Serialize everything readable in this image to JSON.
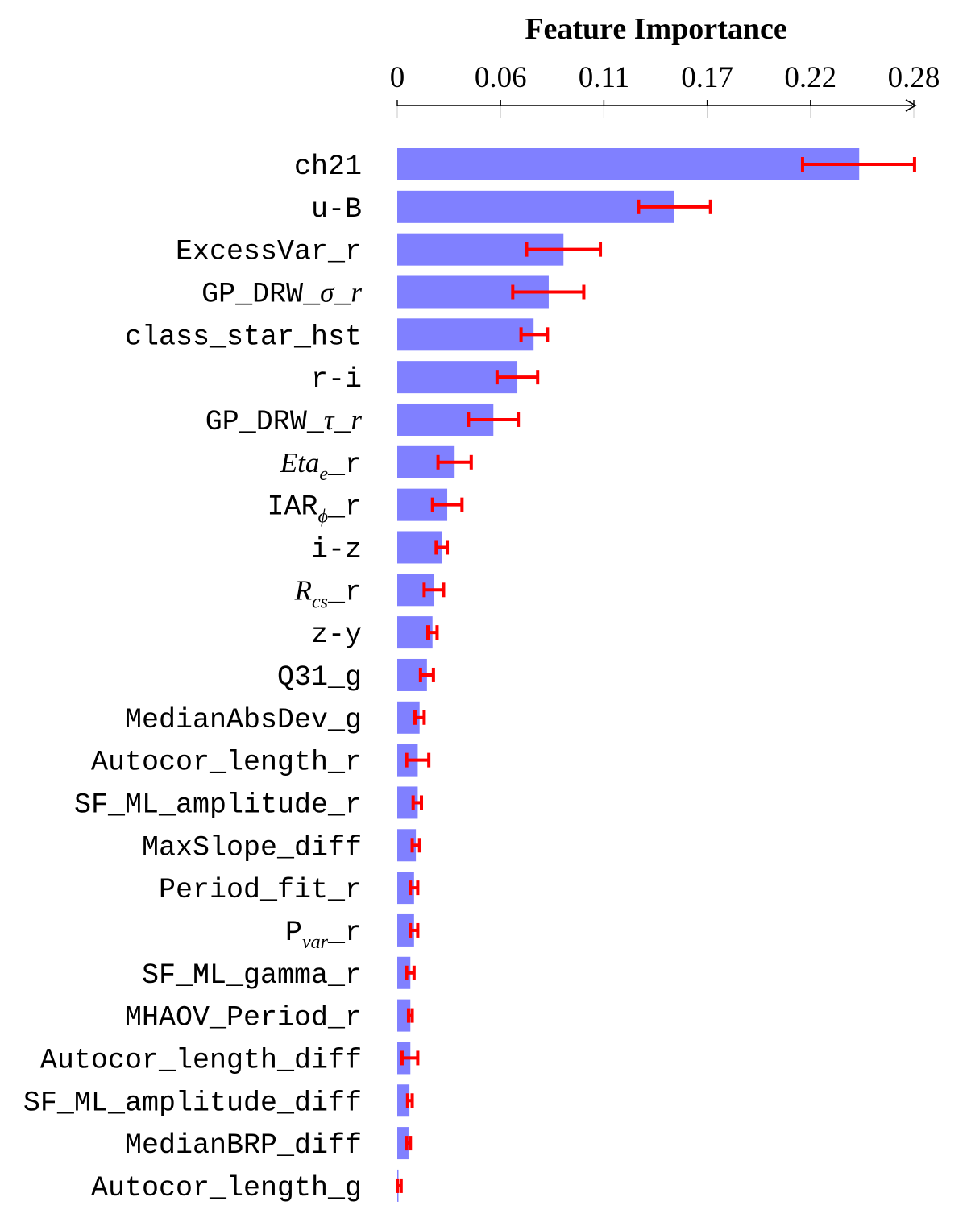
{
  "chart_data": {
    "type": "bar",
    "orientation": "horizontal",
    "title": "Feature Importance",
    "xlabel": "",
    "ylabel": "",
    "xlim": [
      0,
      0.28
    ],
    "x_ticks": [
      "0",
      "0.06",
      "0.11",
      "0.17",
      "0.22",
      "0.28"
    ],
    "x_tick_values": [
      0,
      0.056,
      0.112,
      0.168,
      0.224,
      0.28
    ],
    "axis_position": "top",
    "grid": true,
    "legend": "none",
    "colors": {
      "bar": "#8080ff",
      "error_bar": "#ff0000",
      "axis": "#000000",
      "grid": "#d0d0d0"
    },
    "categories": [
      "ch21",
      "u-B",
      "ExcessVar_r",
      "GP_DRW_σ_r",
      "class_star_hst",
      "r-i",
      "GP_DRW_τ_r",
      "Eta_e_r",
      "IAR_ϕ_r",
      "i-z",
      "R_cs_r",
      "z-y",
      "Q31_g",
      "MedianAbsDev_g",
      "Autocor_length_r",
      "SF_ML_amplitude_r",
      "MaxSlope_diff",
      "Period_fit_r",
      "P_var_r",
      "SF_ML_gamma_r",
      "MHAOV_Period_r",
      "Autocor_length_diff",
      "SF_ML_amplitude_diff",
      "MedianBRP_diff",
      "Autocor_length_g"
    ],
    "labels": [
      [
        {
          "t": "ch21"
        }
      ],
      [
        {
          "t": "u-B"
        }
      ],
      [
        {
          "t": "ExcessVar_r"
        }
      ],
      [
        {
          "t": "GP_DRW_"
        },
        {
          "t": "σ",
          "s": "it"
        },
        {
          "t": "_"
        },
        {
          "t": "r",
          "s": "it"
        }
      ],
      [
        {
          "t": "class_star_hst"
        }
      ],
      [
        {
          "t": "r-i"
        }
      ],
      [
        {
          "t": "GP_DRW_"
        },
        {
          "t": "τ",
          "s": "it"
        },
        {
          "t": "_"
        },
        {
          "t": "r",
          "s": "it"
        }
      ],
      [
        {
          "t": "Eta",
          "s": "it"
        },
        {
          "t": "e",
          "s": "sub"
        },
        {
          "t": "_r"
        }
      ],
      [
        {
          "t": "IAR"
        },
        {
          "t": "ϕ",
          "s": "sub"
        },
        {
          "t": "_r"
        }
      ],
      [
        {
          "t": "i-z"
        }
      ],
      [
        {
          "t": "R",
          "s": "it"
        },
        {
          "t": "cs",
          "s": "sub"
        },
        {
          "t": "_r"
        }
      ],
      [
        {
          "t": "z-y"
        }
      ],
      [
        {
          "t": "Q31_g"
        }
      ],
      [
        {
          "t": "MedianAbsDev_g"
        }
      ],
      [
        {
          "t": "Autocor_length_r"
        }
      ],
      [
        {
          "t": "SF_ML_amplitude_r"
        }
      ],
      [
        {
          "t": "MaxSlope_diff"
        }
      ],
      [
        {
          "t": "Period_fit_r"
        }
      ],
      [
        {
          "t": "P"
        },
        {
          "t": "var",
          "s": "sub"
        },
        {
          "t": "_r"
        }
      ],
      [
        {
          "t": "SF_ML_gamma_r"
        }
      ],
      [
        {
          "t": "MHAOV_Period_r"
        }
      ],
      [
        {
          "t": "Autocor_length_diff"
        }
      ],
      [
        {
          "t": "SF_ML_amplitude_diff"
        }
      ],
      [
        {
          "t": "MedianBRP_diff"
        }
      ],
      [
        {
          "t": "Autocor_length_g"
        }
      ]
    ],
    "values": [
      0.2504,
      0.1499,
      0.0901,
      0.0821,
      0.0739,
      0.0651,
      0.0521,
      0.0311,
      0.0271,
      0.0241,
      0.0201,
      0.0191,
      0.0161,
      0.0121,
      0.0111,
      0.0111,
      0.0101,
      0.0091,
      0.0091,
      0.0071,
      0.0071,
      0.0071,
      0.0066,
      0.0061,
      0.0006
    ],
    "error_low": [
      0.2197,
      0.1308,
      0.0701,
      0.0626,
      0.0671,
      0.0541,
      0.0386,
      0.0221,
      0.0191,
      0.0211,
      0.0146,
      0.0166,
      0.0126,
      0.0096,
      0.0051,
      0.0086,
      0.0081,
      0.0071,
      0.0071,
      0.0051,
      0.0061,
      0.0026,
      0.0056,
      0.0051,
      0.0001
    ],
    "error_high": [
      0.2804,
      0.1698,
      0.1101,
      0.1011,
      0.0814,
      0.0761,
      0.0656,
      0.0401,
      0.0351,
      0.0271,
      0.0251,
      0.0216,
      0.0196,
      0.0146,
      0.0171,
      0.0131,
      0.0121,
      0.0111,
      0.0111,
      0.0091,
      0.0081,
      0.0111,
      0.0081,
      0.0071,
      0.0021
    ]
  }
}
